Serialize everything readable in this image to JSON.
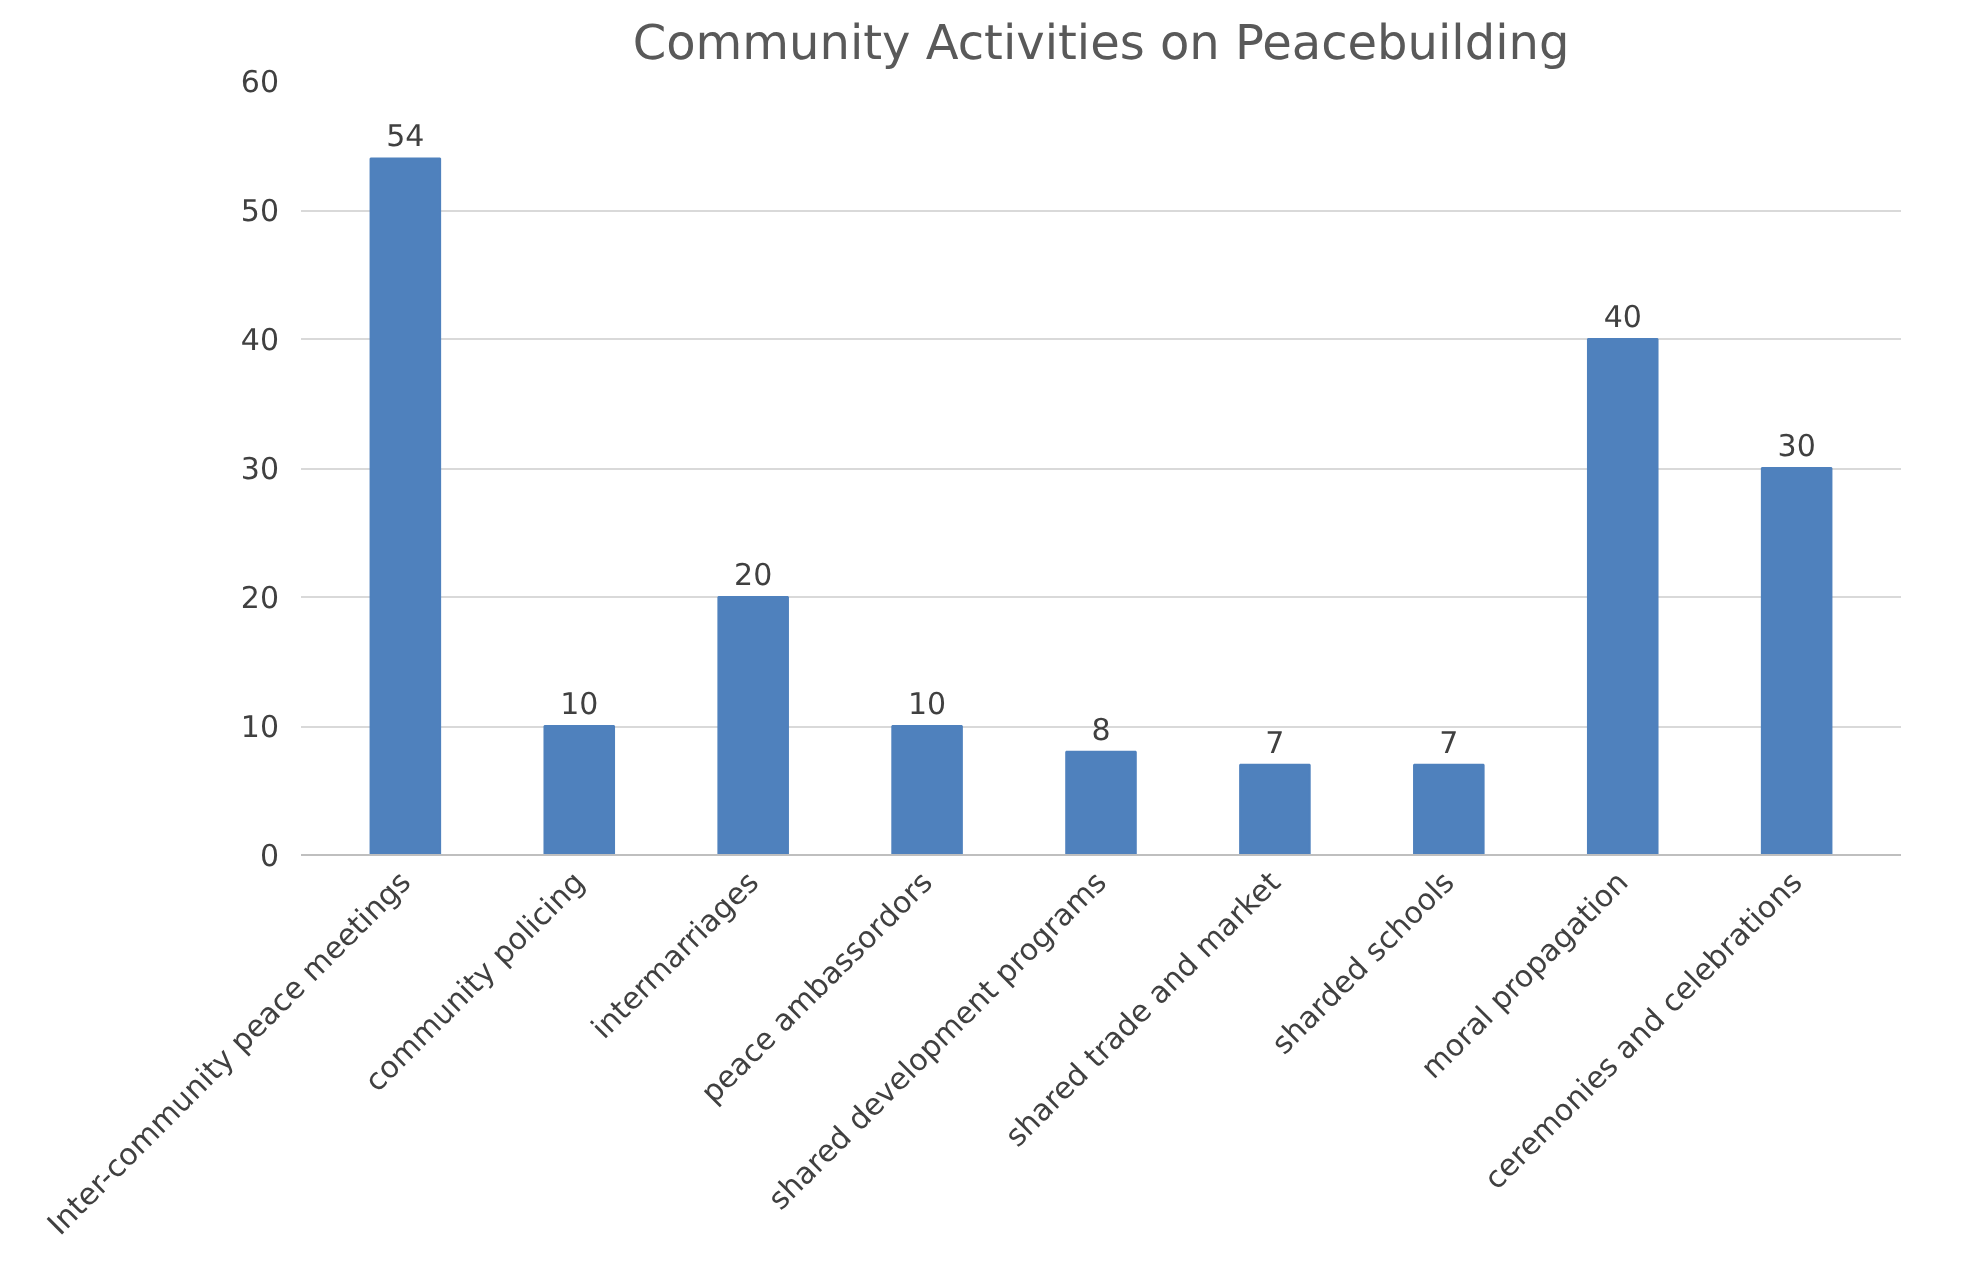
{
  "chart_data": {
    "type": "bar",
    "title": "Community Activities on Peacebuilding",
    "categories": [
      "Inter-community peace meetings",
      "community policing",
      "intermarriages",
      "peace ambassordors",
      "shared development programs",
      "shared trade and market",
      "sharded schools",
      "moral propagation",
      "ceremonies and celebrations"
    ],
    "values": [
      54,
      10,
      20,
      10,
      8,
      7,
      7,
      40,
      30
    ],
    "color": "#4f81bd",
    "ylim": [
      0,
      60
    ],
    "yticks": [
      0,
      10,
      20,
      30,
      40,
      50,
      60
    ],
    "grid": "y",
    "data_labels": true
  }
}
